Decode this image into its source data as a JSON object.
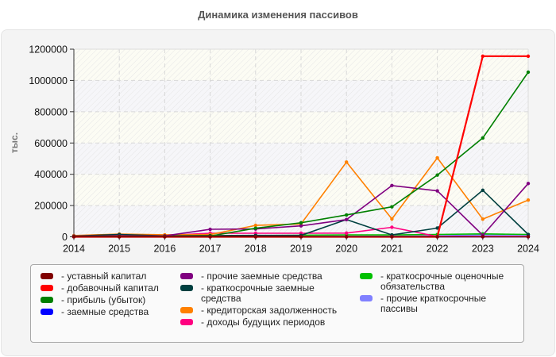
{
  "chart_data": {
    "type": "line",
    "title": "Динамика изменения пассивов",
    "xlabel": "",
    "ylabel": "тыс.",
    "ylim": [
      0,
      1200000
    ],
    "yticks": [
      0,
      200000,
      400000,
      600000,
      800000,
      1000000,
      1200000
    ],
    "grid": true,
    "legend_position": "bottom",
    "x": [
      2014,
      2015,
      2016,
      2017,
      2018,
      2019,
      2020,
      2021,
      2022,
      2023,
      2024
    ],
    "series": [
      {
        "name": "уставный капитал",
        "color": "#800000",
        "values": [
          100,
          100,
          100,
          100,
          100,
          100,
          100,
          100,
          100,
          100,
          100
        ]
      },
      {
        "name": "добавочный капитал",
        "color": "#ff0000",
        "values": [
          0,
          0,
          0,
          0,
          0,
          0,
          0,
          0,
          0,
          1155000,
          1155000
        ]
      },
      {
        "name": "прибыль (убыток)",
        "color": "#008000",
        "values": [
          2000,
          3000,
          3000,
          5000,
          55000,
          90000,
          140000,
          192000,
          395000,
          632000,
          1053000
        ]
      },
      {
        "name": "заемные средства",
        "color": "#0000ff",
        "values": [
          0,
          0,
          0,
          0,
          0,
          0,
          0,
          0,
          0,
          0,
          0
        ]
      },
      {
        "name": "прочие заемные средства",
        "color": "#800080",
        "values": [
          4000,
          5000,
          6000,
          48000,
          50000,
          70000,
          110000,
          328000,
          294000,
          10000,
          341000
        ]
      },
      {
        "name": "краткосрочные заемные средства",
        "color": "#004040",
        "values": [
          5000,
          15000,
          6000,
          8000,
          9000,
          9000,
          110000,
          12000,
          56000,
          298000,
          15000
        ]
      },
      {
        "name": "кредиторская задолженность",
        "color": "#ff8000",
        "values": [
          8000,
          18000,
          13000,
          14000,
          73000,
          82000,
          478000,
          114000,
          505000,
          113000,
          235000
        ]
      },
      {
        "name": "доходы будущих периодов",
        "color": "#ff0080",
        "values": [
          5000,
          12000,
          8000,
          23000,
          23000,
          23000,
          24000,
          61000,
          2000,
          2000,
          2000
        ]
      },
      {
        "name": "краткосрочные оценочные обязательства",
        "color": "#00c000",
        "values": [
          0,
          0,
          0,
          5000,
          8000,
          10000,
          12000,
          12000,
          15000,
          19000,
          15000
        ]
      },
      {
        "name": "прочие краткосрочные пассивы",
        "color": "#8080ff",
        "values": [
          2000,
          2000,
          2000,
          3000,
          3000,
          3000,
          3000,
          4000,
          6000,
          12000,
          12000
        ]
      }
    ]
  },
  "legend": {
    "columns": [
      [
        {
          "label": "- уставный капитал",
          "color": "#800000"
        },
        {
          "label": "- добавочный капитал",
          "color": "#ff0000"
        },
        {
          "label": "- прибыль (убыток)",
          "color": "#008000"
        },
        {
          "label": "- заемные средства",
          "color": "#0000ff"
        }
      ],
      [
        {
          "label": "- прочие заемные средства",
          "color": "#800080"
        },
        {
          "label": "- краткосрочные заемные средства",
          "color": "#004040"
        },
        {
          "label": "- кредиторская задолженность",
          "color": "#ff8000"
        },
        {
          "label": "- доходы будущих периодов",
          "color": "#ff0080"
        }
      ],
      [
        {
          "label": "- краткосрочные оценочные обязательства",
          "color": "#00c000"
        },
        {
          "label": "- прочие краткосрочные пассивы",
          "color": "#8080ff"
        }
      ]
    ]
  }
}
